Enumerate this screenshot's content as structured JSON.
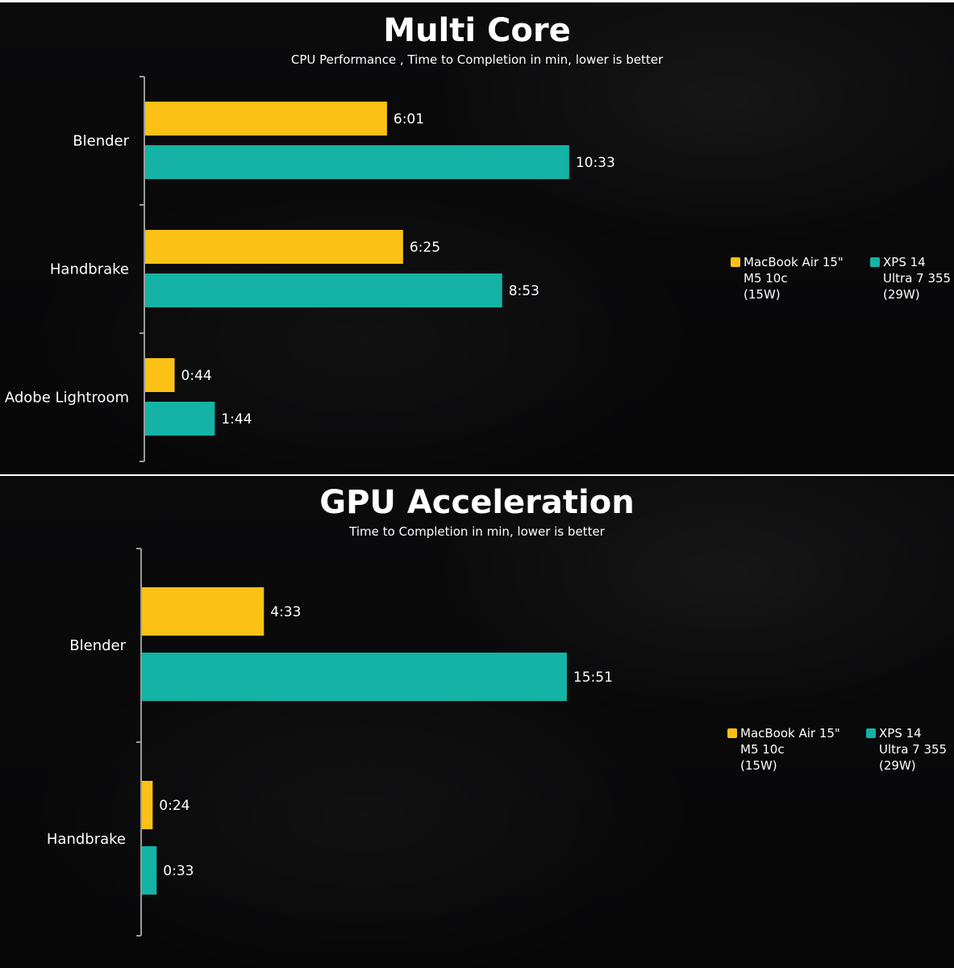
{
  "chart_data": [
    {
      "type": "bar",
      "orientation": "horizontal",
      "title": "Multi Core",
      "subtitle": "CPU Performance , Time to Completion in min, lower is better",
      "categories": [
        "Blender",
        "Handbrake",
        "Adobe Lightroom"
      ],
      "series": [
        {
          "name": "MacBook Air 15\"\nM5 10c\n(15W)",
          "color": "#fbc215",
          "values": [
            6.017,
            6.417,
            0.733
          ],
          "labels": [
            "6:01",
            "6:25",
            "0:44"
          ]
        },
        {
          "name": "XPS 14\nUltra 7 355\n(29W)",
          "color": "#14b3a6",
          "values": [
            10.55,
            8.883,
            1.733
          ],
          "labels": [
            "10:33",
            "8:53",
            "1:44"
          ]
        }
      ],
      "xlim": [
        0,
        12.6
      ],
      "legend_position": "right",
      "grid": false
    },
    {
      "type": "bar",
      "orientation": "horizontal",
      "title": "GPU Acceleration",
      "subtitle": "Time to Completion in min, lower is better",
      "categories": [
        "Blender",
        "Handbrake"
      ],
      "series": [
        {
          "name": "MacBook Air 15\"\nM5 10c\n(15W)",
          "color": "#fbc215",
          "values": [
            4.55,
            0.4
          ],
          "labels": [
            "4:33",
            "0:24"
          ]
        },
        {
          "name": "XPS 14\nUltra 7 355\n(29W)",
          "color": "#14b3a6",
          "values": [
            15.85,
            0.55
          ],
          "labels": [
            "15:51",
            "0:33"
          ]
        }
      ],
      "xlim": [
        0,
        18.8
      ],
      "legend_position": "right",
      "grid": false
    }
  ]
}
